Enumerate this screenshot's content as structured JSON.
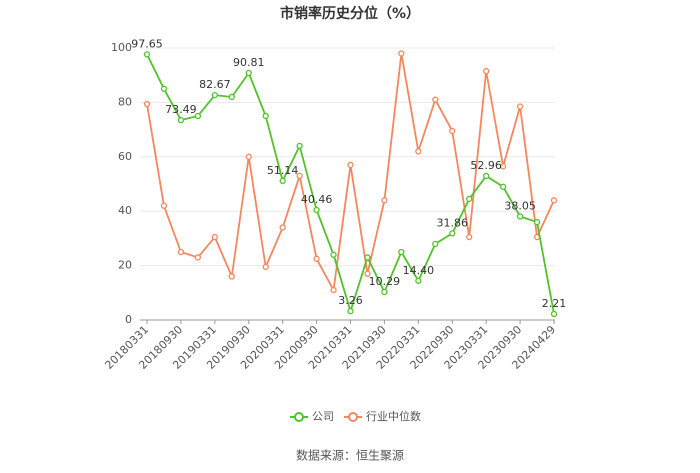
{
  "chart_data": {
    "type": "line",
    "title": "市销率历史分位（%）",
    "categories": [
      "20180331",
      null,
      "20180930",
      null,
      "20190331",
      null,
      "20190930",
      null,
      "20200331",
      null,
      "20200930",
      null,
      "20210331",
      null,
      "20210930",
      null,
      "20220331",
      null,
      "20220930",
      null,
      "20230331",
      null,
      "20230930",
      null,
      "20240429"
    ],
    "series": [
      {
        "name": "公司",
        "color": "#52c22b",
        "values": [
          97.65,
          85,
          73.49,
          75,
          82.67,
          82,
          90.81,
          75,
          51.14,
          64,
          40.46,
          24,
          3.26,
          23,
          10.29,
          25,
          14.4,
          28,
          31.86,
          44.5,
          52.96,
          49,
          38.05,
          36,
          2.21
        ],
        "value_labels": [
          "97.65",
          null,
          "73.49",
          null,
          "82.67",
          null,
          "90.81",
          null,
          "51.14",
          null,
          "40.46",
          null,
          "3.26",
          null,
          "10.29",
          null,
          "14.40",
          null,
          "31.86",
          null,
          "52.96",
          null,
          "38.05",
          null,
          "2.21"
        ]
      },
      {
        "name": "行业中位数",
        "color": "#f4875e",
        "values": [
          79.4,
          42,
          25,
          23,
          30.5,
          16,
          60,
          19.5,
          34,
          53,
          22.5,
          11,
          57,
          17,
          44,
          98,
          62,
          81,
          69.5,
          30.5,
          91.5,
          56.5,
          78.5,
          30.5,
          44
        ]
      }
    ],
    "ylim": [
      0,
      100
    ],
    "yticks": [
      0,
      20,
      40,
      60,
      80,
      100
    ],
    "grid": true,
    "legend": "bottom",
    "source": "数据来源：恒生聚源"
  }
}
